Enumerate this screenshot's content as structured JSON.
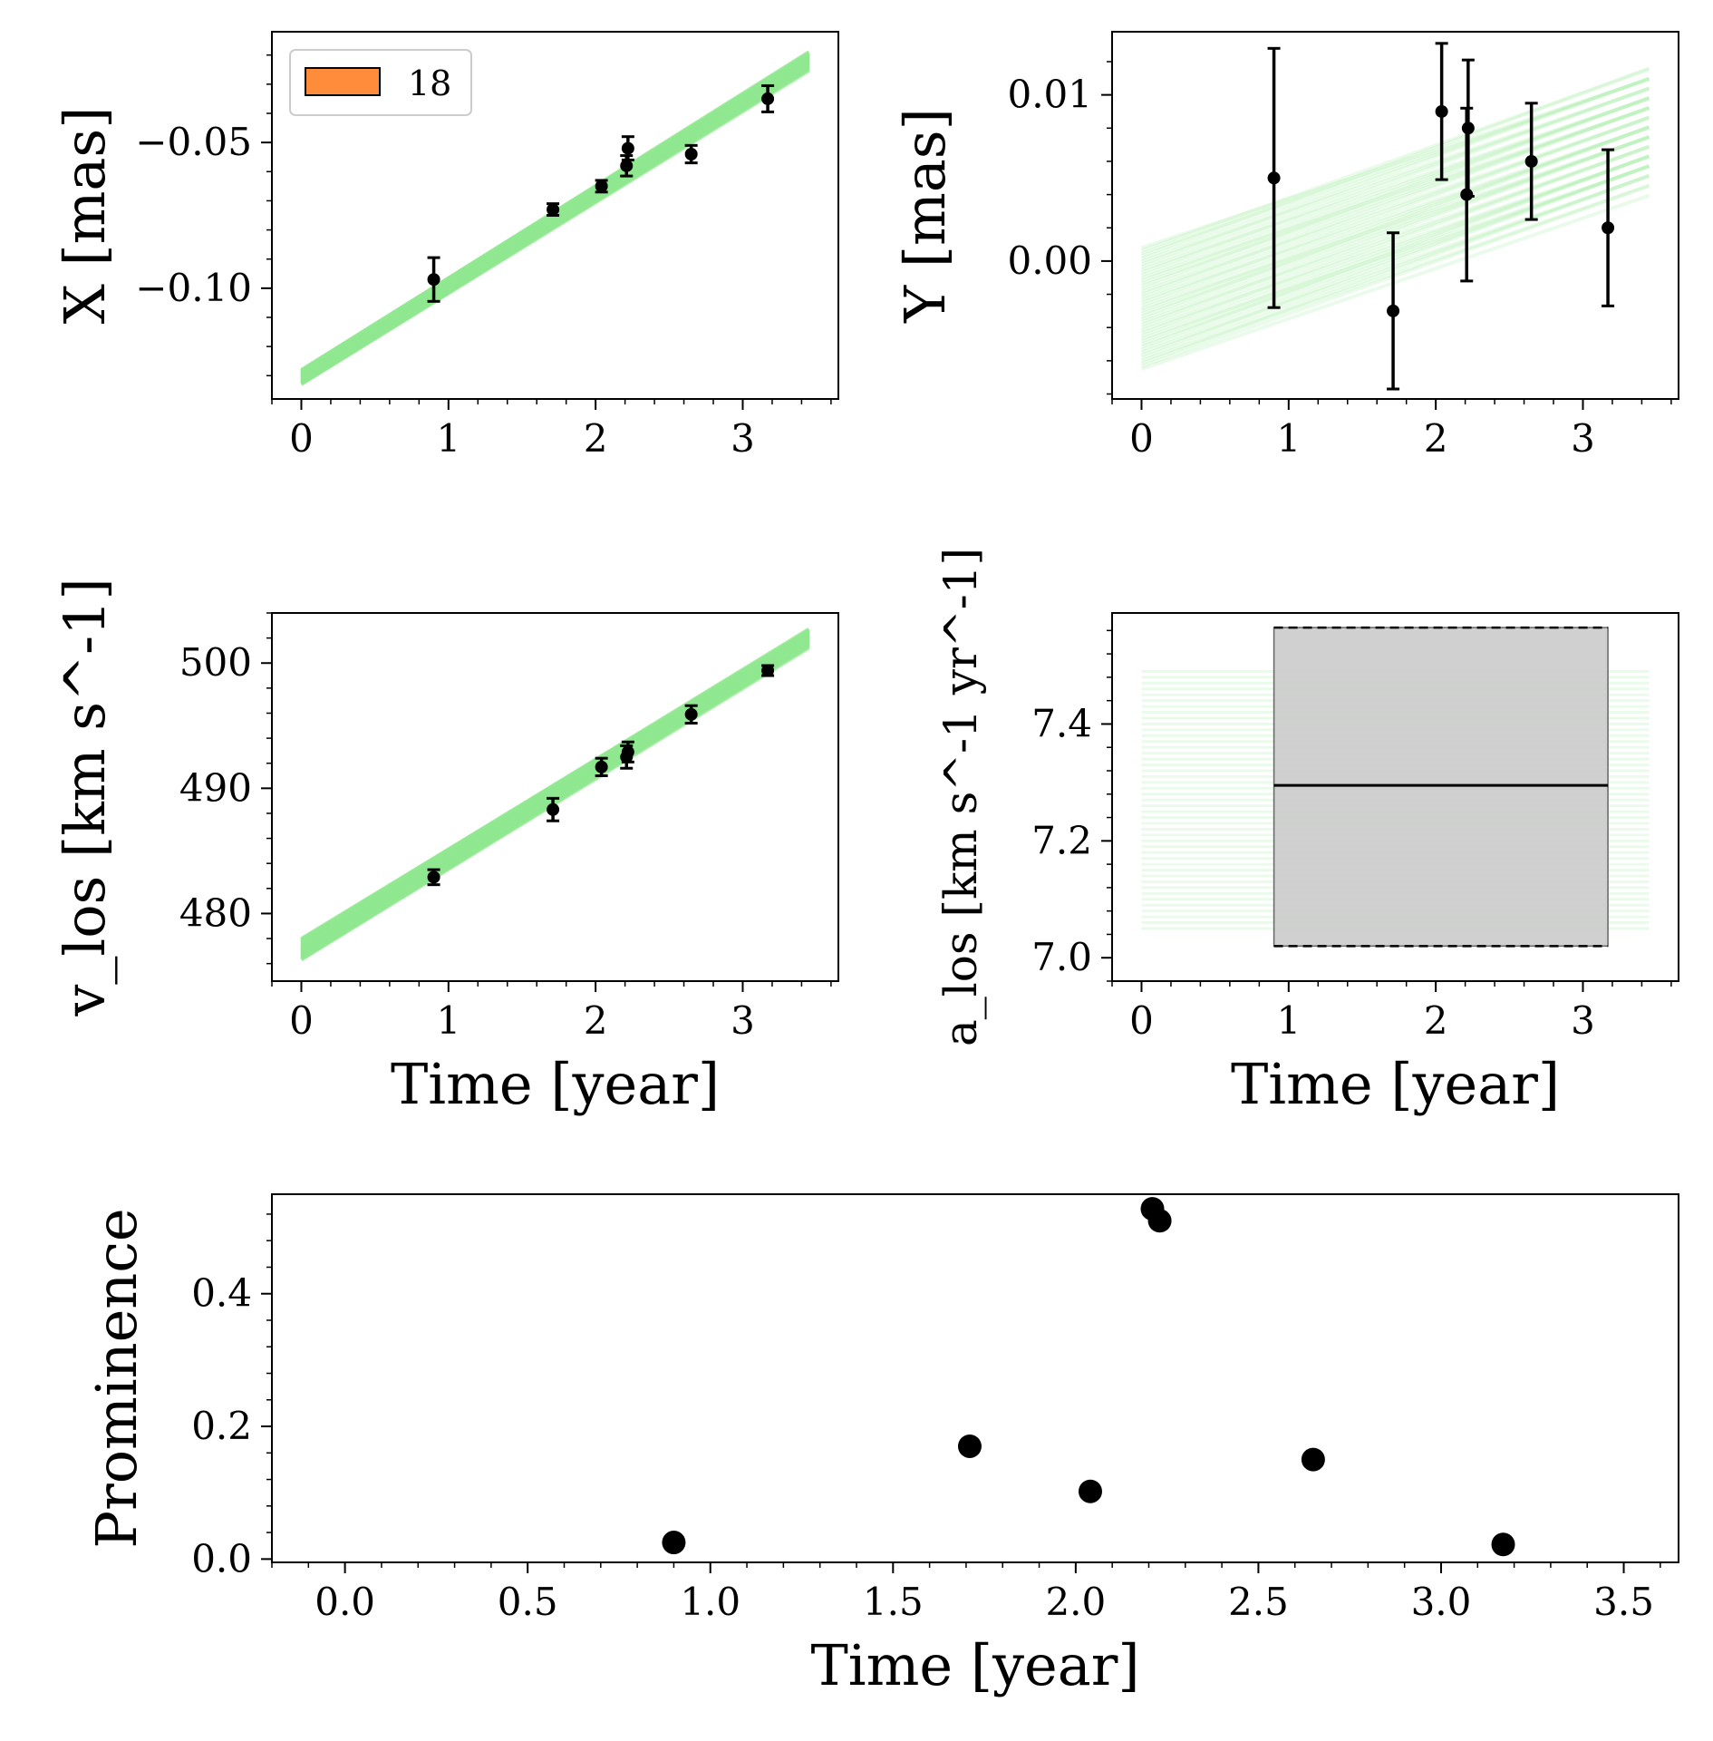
{
  "chart_data": [
    {
      "type": "scatter",
      "panel": "top-left",
      "ylabel": "X [mas]",
      "xlabel": "",
      "xlim": [
        -0.2,
        3.65
      ],
      "ylim": [
        -0.138,
        -0.012
      ],
      "xticks": [
        0,
        1,
        2,
        3
      ],
      "yticks": [
        -0.1,
        -0.05
      ],
      "ytick_labels": [
        "−0.10",
        "−0.05"
      ],
      "legend": {
        "label": "18",
        "color": "#ff8c3a",
        "position": "top-left"
      },
      "fit_band": {
        "color": "#90e890",
        "x": [
          0,
          3.45
        ],
        "y_low": [
          -0.133,
          -0.025
        ],
        "y_high": [
          -0.128,
          -0.019
        ]
      },
      "series": [
        {
          "name": "data",
          "x": [
            0.9,
            1.71,
            2.04,
            2.21,
            2.22,
            2.65,
            3.17
          ],
          "y": [
            -0.097,
            -0.073,
            -0.065,
            -0.058,
            -0.052,
            -0.054,
            -0.035
          ],
          "yerr": [
            0.0075,
            0.002,
            0.002,
            0.0035,
            0.004,
            0.003,
            0.0045
          ]
        }
      ]
    },
    {
      "type": "scatter",
      "panel": "top-right",
      "ylabel": "Y [mas]",
      "xlabel": "",
      "xlim": [
        -0.2,
        3.65
      ],
      "ylim": [
        -0.0083,
        0.0138
      ],
      "xticks": [
        0,
        1,
        2,
        3
      ],
      "yticks": [
        0.0,
        0.01
      ],
      "ytick_labels": [
        "0.00",
        "0.01"
      ],
      "fit_band": {
        "color": "#90e890",
        "x": [
          0,
          3.45
        ],
        "y_low": [
          -0.0065,
          0.0045
        ],
        "y_high": [
          0.0008,
          0.0115
        ]
      },
      "series": [
        {
          "name": "data",
          "x": [
            0.9,
            1.71,
            2.04,
            2.21,
            2.22,
            2.65,
            3.17
          ],
          "y": [
            0.005,
            -0.003,
            0.009,
            0.004,
            0.008,
            0.006,
            0.002
          ],
          "yerr": [
            0.0078,
            0.0047,
            0.0041,
            0.0052,
            0.0041,
            0.0035,
            0.0047
          ]
        }
      ]
    },
    {
      "type": "scatter",
      "panel": "middle-left",
      "ylabel": "v_los [km s^-1]",
      "xlabel": "Time [year]",
      "xlim": [
        -0.2,
        3.65
      ],
      "ylim": [
        474.6,
        504.0
      ],
      "xticks": [
        0,
        1,
        2,
        3
      ],
      "yticks": [
        480,
        490,
        500
      ],
      "ytick_labels": [
        "480",
        "490",
        "500"
      ],
      "fit_band": {
        "color": "#90e890",
        "x": [
          0,
          3.45
        ],
        "y_low": [
          476.3,
          501.3
        ],
        "y_high": [
          478.0,
          502.7
        ]
      },
      "series": [
        {
          "name": "data",
          "x": [
            0.9,
            1.71,
            2.04,
            2.21,
            2.22,
            2.65,
            3.17
          ],
          "y": [
            482.9,
            488.3,
            491.7,
            492.5,
            492.9,
            495.9,
            499.4
          ],
          "yerr": [
            0.6,
            0.9,
            0.7,
            0.9,
            0.8,
            0.7,
            0.4
          ]
        }
      ]
    },
    {
      "type": "area",
      "panel": "middle-right",
      "ylabel": "a_los [km s^-1 yr^-1]",
      "xlabel": "Time [year]",
      "xlim": [
        -0.2,
        3.65
      ],
      "ylim": [
        6.96,
        7.59
      ],
      "xticks": [
        0,
        1,
        2,
        3
      ],
      "yticks": [
        7.0,
        7.2,
        7.4
      ],
      "ytick_labels": [
        "7.0",
        "7.2",
        "7.4"
      ],
      "fit_band": {
        "color": "#90e890",
        "x": [
          0,
          3.45
        ],
        "y_low": 7.05,
        "y_high": 7.49
      },
      "box": {
        "x_start": 0.9,
        "x_end": 3.17,
        "lower": 7.02,
        "upper": 7.565,
        "median": 7.295,
        "fill": "#c8c8c8"
      }
    },
    {
      "type": "scatter",
      "panel": "bottom",
      "ylabel": "Prominence",
      "xlabel": "Time [year]",
      "xlim": [
        -0.2,
        3.65
      ],
      "ylim": [
        -0.005,
        0.55
      ],
      "xticks": [
        0.0,
        0.5,
        1.0,
        1.5,
        2.0,
        2.5,
        3.0,
        3.5
      ],
      "xtick_labels": [
        "0.0",
        "0.5",
        "1.0",
        "1.5",
        "2.0",
        "2.5",
        "3.0",
        "3.5"
      ],
      "yticks": [
        0.0,
        0.2,
        0.4
      ],
      "ytick_labels": [
        "0.0",
        "0.2",
        "0.4"
      ],
      "series": [
        {
          "name": "prominence",
          "x": [
            0.9,
            1.71,
            2.04,
            2.21,
            2.23,
            2.65,
            3.17
          ],
          "y": [
            0.025,
            0.17,
            0.102,
            0.528,
            0.51,
            0.15,
            0.022
          ]
        }
      ]
    }
  ]
}
